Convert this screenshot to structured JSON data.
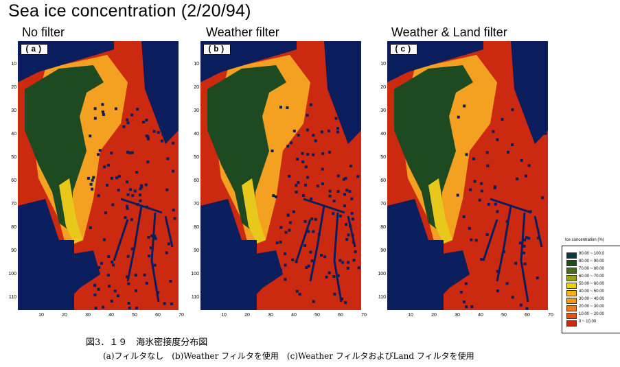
{
  "title": "Sea ice concentration (2/20/94)",
  "panels": [
    {
      "title": "No filter",
      "badge": "(a)"
    },
    {
      "title": "Weather filter",
      "badge": "(b)"
    },
    {
      "title": "Weather & Land filter",
      "badge": "(c)"
    }
  ],
  "y_ticks": [
    "10",
    "20",
    "30",
    "40",
    "50",
    "60",
    "70",
    "80",
    "90",
    "100",
    "110"
  ],
  "x_ticks": [
    "10",
    "20",
    "30",
    "40",
    "50",
    "60",
    "70"
  ],
  "legend": {
    "title": "Ice concentration (%)",
    "items": [
      {
        "label": "90.00 ~ 100.0",
        "color": "#0b3a3a"
      },
      {
        "label": "80.00 ~ 90.00",
        "color": "#1f4d1f"
      },
      {
        "label": "70.00 ~ 80.00",
        "color": "#4a6a1c"
      },
      {
        "label": "60.00 ~ 70.00",
        "color": "#9aa21a"
      },
      {
        "label": "50.00 ~ 60.00",
        "color": "#f0d000"
      },
      {
        "label": "40.00 ~ 50.00",
        "color": "#f7b21a"
      },
      {
        "label": "30.00 ~ 40.00",
        "color": "#f59a1c"
      },
      {
        "label": "20.00 ~ 30.00",
        "color": "#ee7a1e"
      },
      {
        "label": "10.00 ~ 20.00",
        "color": "#e2521c"
      },
      {
        "label": "0 ~ 10.00",
        "color": "#cc2a10"
      }
    ]
  },
  "colors": {
    "land": "#0a1d5c",
    "open_water": "#cc2a10",
    "ice_edge": "#f4a020",
    "thick_ice": "#1e4a22"
  },
  "caption_line1": "図3．１９　海氷密接度分布図",
  "caption_line2": "(a)フィルタなし　(b)Weather フィルタを使用　(c)Weather フィルタおよびLand フィルタを使用"
}
